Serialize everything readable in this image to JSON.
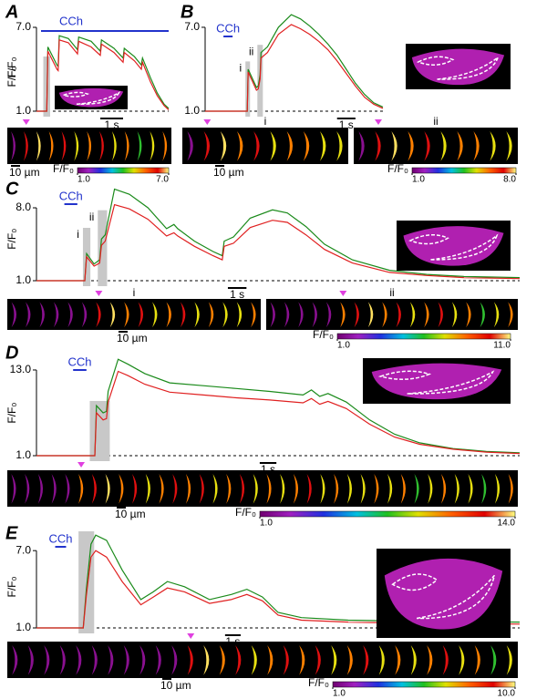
{
  "chart_data": [
    {
      "type": "line",
      "panel": "A",
      "ylabel": "F/F₀",
      "ylim": [
        1,
        7
      ],
      "yticks": [
        {
          "value": 1,
          "label": "1.0"
        },
        {
          "value": 7,
          "label": "7.0"
        }
      ],
      "xlim": [
        0,
        5.8
      ],
      "baseline": 1,
      "x": [
        0,
        0.45,
        0.5,
        0.9,
        0.95,
        1.0,
        1.4,
        1.8,
        1.85,
        2.4,
        2.8,
        2.85,
        3.4,
        3.8,
        3.85,
        4.3,
        4.6,
        4.65,
        5.0,
        5.3,
        5.6,
        5.8
      ],
      "series": [
        {
          "color": "#1a8a1a",
          "values": [
            1,
            1,
            5.6,
            4.3,
            4.2,
            6.4,
            6.2,
            5.4,
            6.3,
            6.0,
            5.3,
            6.1,
            5.5,
            4.8,
            5.5,
            4.9,
            4.3,
            4.8,
            3.4,
            2.3,
            1.5,
            1.2
          ]
        },
        {
          "color": "#e02020",
          "values": [
            1,
            1,
            5.3,
            4.0,
            3.9,
            6.1,
            5.9,
            5.1,
            6.0,
            5.6,
            5.0,
            5.8,
            5.2,
            4.5,
            5.2,
            4.6,
            4.0,
            4.5,
            3.1,
            2.1,
            1.4,
            1.1
          ]
        }
      ],
      "stimulus": {
        "label": "CCh",
        "x": [
          0.2,
          5.8
        ]
      },
      "highlights": [
        {
          "x": [
            0.3,
            0.6
          ]
        }
      ],
      "time_scale_bar": {
        "value": 1,
        "label": "1 s"
      },
      "length_scale_bar": {
        "value": 10,
        "label": "10 µm"
      },
      "colorbar": {
        "label": "F/F₀",
        "ticks": [
          {
            "value": 1,
            "label": "1.0"
          },
          {
            "value": 7,
            "label": "7.0"
          }
        ]
      }
    },
    {
      "type": "line",
      "panel": "B",
      "ylabel": "F/F₀",
      "ylim": [
        1,
        8.3
      ],
      "yticks": [
        {
          "value": 1,
          "label": "1.0"
        },
        {
          "value": 7,
          "label": "7.0"
        }
      ],
      "xlim": [
        0,
        9.7
      ],
      "baseline": 1,
      "x": [
        0,
        2.3,
        2.35,
        2.8,
        2.9,
        3.0,
        3.05,
        3.4,
        4.0,
        4.7,
        5.2,
        5.7,
        6.2,
        6.7,
        7.2,
        7.7,
        8.2,
        8.7,
        9.2,
        9.7
      ],
      "series": [
        {
          "color": "#1a8a1a",
          "values": [
            1,
            1,
            4.0,
            2.7,
            2.8,
            3.6,
            5.2,
            5.6,
            7.0,
            7.9,
            7.6,
            7.1,
            6.5,
            5.8,
            5.0,
            4.0,
            3.0,
            2.2,
            1.6,
            1.3
          ]
        },
        {
          "color": "#e02020",
          "values": [
            1,
            1,
            3.8,
            2.5,
            2.6,
            3.3,
            4.8,
            5.2,
            6.5,
            7.2,
            6.9,
            6.5,
            6.0,
            5.4,
            4.6,
            3.7,
            2.8,
            2.0,
            1.5,
            1.2
          ]
        }
      ],
      "stimulus": {
        "label": "CCh",
        "x": [
          1.0,
          1.5
        ]
      },
      "highlights": [
        {
          "x": [
            2.2,
            2.45
          ],
          "label": "i"
        },
        {
          "x": [
            2.85,
            3.15
          ],
          "label": "ii"
        }
      ],
      "time_scale_bar": {
        "value": 1,
        "label": "1 s"
      },
      "length_scale_bar": {
        "value": 10,
        "label": "10 µm"
      },
      "colorbar": {
        "label": "F/F₀",
        "ticks": [
          {
            "value": 1,
            "label": "1.0"
          },
          {
            "value": 8,
            "label": "8.0"
          }
        ]
      }
    },
    {
      "type": "line",
      "panel": "C",
      "ylabel": "F/F₀",
      "ylim": [
        1,
        10.4
      ],
      "yticks": [
        {
          "value": 1,
          "label": "1.0"
        },
        {
          "value": 8,
          "label": "8.0"
        }
      ],
      "xlim": [
        0,
        26
      ],
      "baseline": 1,
      "x": [
        0,
        2.6,
        2.7,
        3.1,
        3.4,
        3.5,
        3.7,
        4.2,
        5,
        6,
        7,
        7.4,
        7.6,
        8.5,
        9.5,
        10.0,
        10.1,
        10.6,
        11.5,
        12.7,
        13.5,
        14.5,
        15.5,
        17,
        19,
        21,
        23,
        26
      ],
      "series": [
        {
          "color": "#1a8a1a",
          "values": [
            1,
            1,
            3.6,
            2.6,
            3.0,
            5.0,
            5.4,
            9.8,
            9.3,
            8.0,
            6.0,
            6.4,
            6.0,
            4.8,
            3.8,
            3.4,
            4.8,
            5.2,
            7.0,
            7.8,
            7.5,
            6.2,
            4.5,
            3.0,
            2.0,
            1.6,
            1.4,
            1.3
          ]
        },
        {
          "color": "#e02020",
          "values": [
            1,
            1,
            3.3,
            2.4,
            2.7,
            4.4,
            4.8,
            8.3,
            7.9,
            6.9,
            5.3,
            5.6,
            5.3,
            4.3,
            3.4,
            3.0,
            4.3,
            4.6,
            6.1,
            6.8,
            6.6,
            5.4,
            4.0,
            2.7,
            1.8,
            1.5,
            1.3,
            1.2
          ]
        }
      ],
      "stimulus": {
        "label": "CCh",
        "x": [
          1.5,
          2.2
        ]
      },
      "highlights": [
        {
          "x": [
            2.5,
            2.9
          ],
          "label": "i"
        },
        {
          "x": [
            3.3,
            3.8
          ],
          "label": "ii"
        }
      ],
      "time_scale_bar": {
        "value": 1,
        "label": "1 s"
      },
      "length_scale_bar": {
        "value": 10,
        "label": "10 µm"
      },
      "colorbar": {
        "label": "F/F₀",
        "ticks": [
          {
            "value": 1,
            "label": "1.0"
          },
          {
            "value": 11,
            "label": "11.0"
          }
        ]
      }
    },
    {
      "type": "line",
      "panel": "D",
      "ylabel": "F/F₀",
      "ylim": [
        1,
        15
      ],
      "yticks": [
        {
          "value": 1,
          "label": "1.0"
        },
        {
          "value": 13,
          "label": "13.0"
        }
      ],
      "xlim": [
        0,
        29
      ],
      "baseline": 1,
      "x": [
        0,
        3.5,
        3.6,
        4.0,
        4.2,
        4.3,
        4.9,
        5.5,
        6.5,
        8,
        10,
        12,
        14,
        16,
        16.5,
        17,
        17.5,
        18.6,
        20,
        21.5,
        23,
        25,
        27,
        29
      ],
      "series": [
        {
          "color": "#1a8a1a",
          "values": [
            1,
            1,
            8.0,
            7.0,
            7.2,
            10,
            14.5,
            13.8,
            12.5,
            11.2,
            10.8,
            10.4,
            10.0,
            9.5,
            10.2,
            9.3,
            9.7,
            8.5,
            6.0,
            4.0,
            2.8,
            2.0,
            1.6,
            1.4
          ]
        },
        {
          "color": "#e02020",
          "values": [
            1,
            1,
            7.0,
            6.0,
            6.2,
            8.5,
            12.8,
            12.2,
            11.0,
            9.9,
            9.5,
            9.1,
            8.8,
            8.4,
            9.0,
            8.2,
            8.6,
            7.6,
            5.4,
            3.6,
            2.6,
            1.9,
            1.5,
            1.3
          ]
        }
      ],
      "stimulus": {
        "label": "CCh",
        "x": [
          2.2,
          3.0
        ]
      },
      "highlights": [
        {
          "x": [
            3.2,
            4.4
          ]
        }
      ],
      "time_scale_bar": {
        "value": 1,
        "label": "1 s"
      },
      "length_scale_bar": {
        "value": 10,
        "label": "10 µm"
      },
      "colorbar": {
        "label": "F/F₀",
        "ticks": [
          {
            "value": 1,
            "label": "1.0"
          },
          {
            "value": 14,
            "label": "14.0"
          }
        ]
      }
    },
    {
      "type": "line",
      "panel": "E",
      "ylabel": "F/F₀",
      "ylim": [
        1,
        8.5
      ],
      "yticks": [
        {
          "value": 1,
          "label": "1.0"
        },
        {
          "value": 7,
          "label": "7.0"
        }
      ],
      "xlim": [
        0,
        31
      ],
      "baseline": 1,
      "x": [
        0,
        3.0,
        3.2,
        3.5,
        3.8,
        4.5,
        5.5,
        6.7,
        7.5,
        8.4,
        9.5,
        11.1,
        12.5,
        13.5,
        14.5,
        15.5,
        17,
        20,
        25,
        31
      ],
      "series": [
        {
          "color": "#1a8a1a",
          "values": [
            1,
            1,
            4,
            7.5,
            8.2,
            7.8,
            5.5,
            3.2,
            3.8,
            4.6,
            4.2,
            3.2,
            3.6,
            4.0,
            3.4,
            2.2,
            1.8,
            1.6,
            1.5,
            1.45
          ]
        },
        {
          "color": "#e02020",
          "values": [
            1,
            1,
            3.5,
            6.5,
            7.0,
            6.5,
            4.6,
            2.8,
            3.4,
            4.1,
            3.8,
            2.9,
            3.2,
            3.6,
            3.1,
            2.0,
            1.6,
            1.45,
            1.35,
            1.3
          ]
        }
      ],
      "stimulus": {
        "label": "CCh",
        "x": [
          1.2,
          1.9
        ]
      },
      "highlights": [
        {
          "x": [
            2.7,
            3.7
          ]
        }
      ],
      "time_scale_bar": {
        "value": 1,
        "label": "1 s"
      },
      "length_scale_bar": {
        "value": 10,
        "label": "10 µm"
      },
      "colorbar": {
        "label": "F/F₀",
        "ticks": [
          {
            "value": 1,
            "label": "1.0"
          },
          {
            "value": 10,
            "label": "10.0"
          }
        ]
      }
    }
  ]
}
